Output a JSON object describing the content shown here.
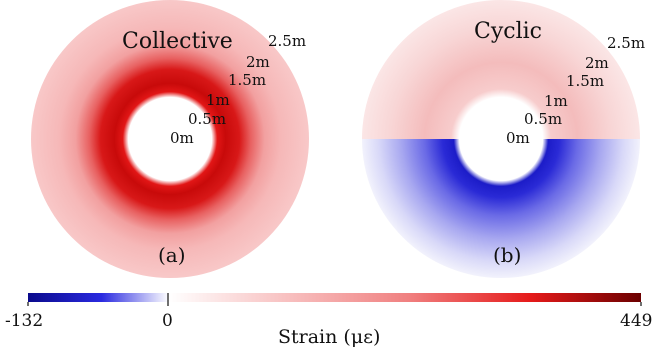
{
  "panels": [
    {
      "title": "Collective",
      "letter": "(a)",
      "radial_labels": [
        "0m",
        "0.5m",
        "1m",
        "1.5m",
        "2m",
        "2.5m"
      ]
    },
    {
      "title": "Cyclic",
      "letter": "(b)",
      "radial_labels": [
        "0m",
        "0.5m",
        "1m",
        "1.5m",
        "2m",
        "2.5m"
      ]
    }
  ],
  "colorbar": {
    "title": "Strain (με)",
    "min_label": "-132",
    "zero_label": "0",
    "max_label": "449",
    "min": -132,
    "max": 449,
    "colors": {
      "negative": "#0a0a8c",
      "zero": "#ffffff",
      "mid_positive": "#e51a1a",
      "max_positive": "#6b0000"
    }
  }
}
